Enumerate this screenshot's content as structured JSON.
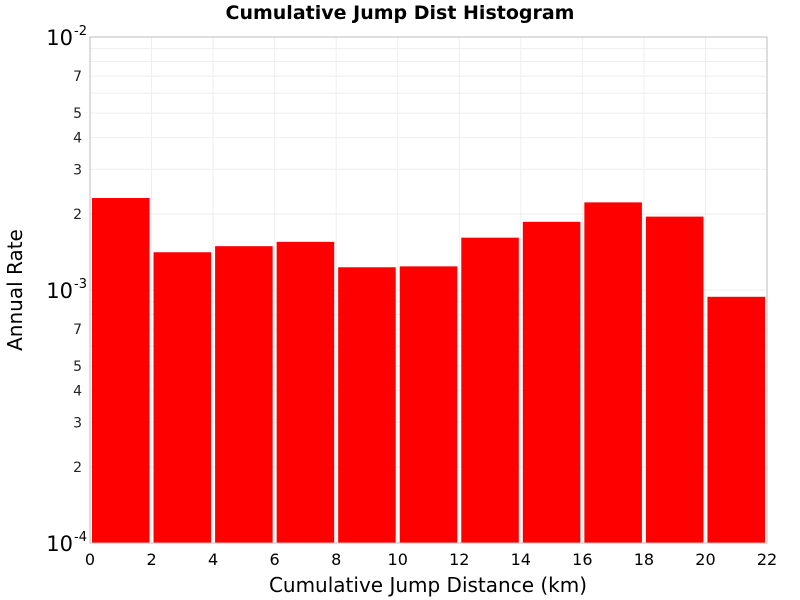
{
  "chart_data": {
    "type": "bar",
    "title": "Cumulative Jump Dist Histogram",
    "xlabel": "Cumulative Jump Distance (km)",
    "ylabel": "Annual Rate",
    "x_bin_edges": [
      0,
      2,
      4,
      6,
      8,
      10,
      12,
      14,
      16,
      18,
      20,
      22
    ],
    "values": [
      0.00231,
      0.00141,
      0.00149,
      0.00155,
      0.00123,
      0.00124,
      0.00161,
      0.00186,
      0.00222,
      0.00195,
      0.00094
    ],
    "xlim": [
      0,
      22
    ],
    "ylim": [
      0.0001,
      0.01
    ],
    "yscale": "log",
    "x_ticks": [
      "0",
      "2",
      "4",
      "6",
      "8",
      "10",
      "12",
      "14",
      "16",
      "18",
      "20",
      "22"
    ],
    "y_major_ticks": [
      {
        "value": 0.01,
        "base": "10",
        "exp": "-2"
      },
      {
        "value": 0.001,
        "base": "10",
        "exp": "-3"
      },
      {
        "value": 0.0001,
        "base": "10",
        "exp": "-4"
      }
    ],
    "y_minor_tick_labels": [
      "2",
      "3",
      "4",
      "5",
      "7"
    ],
    "bar_color": "#ff0000",
    "grid": true
  }
}
